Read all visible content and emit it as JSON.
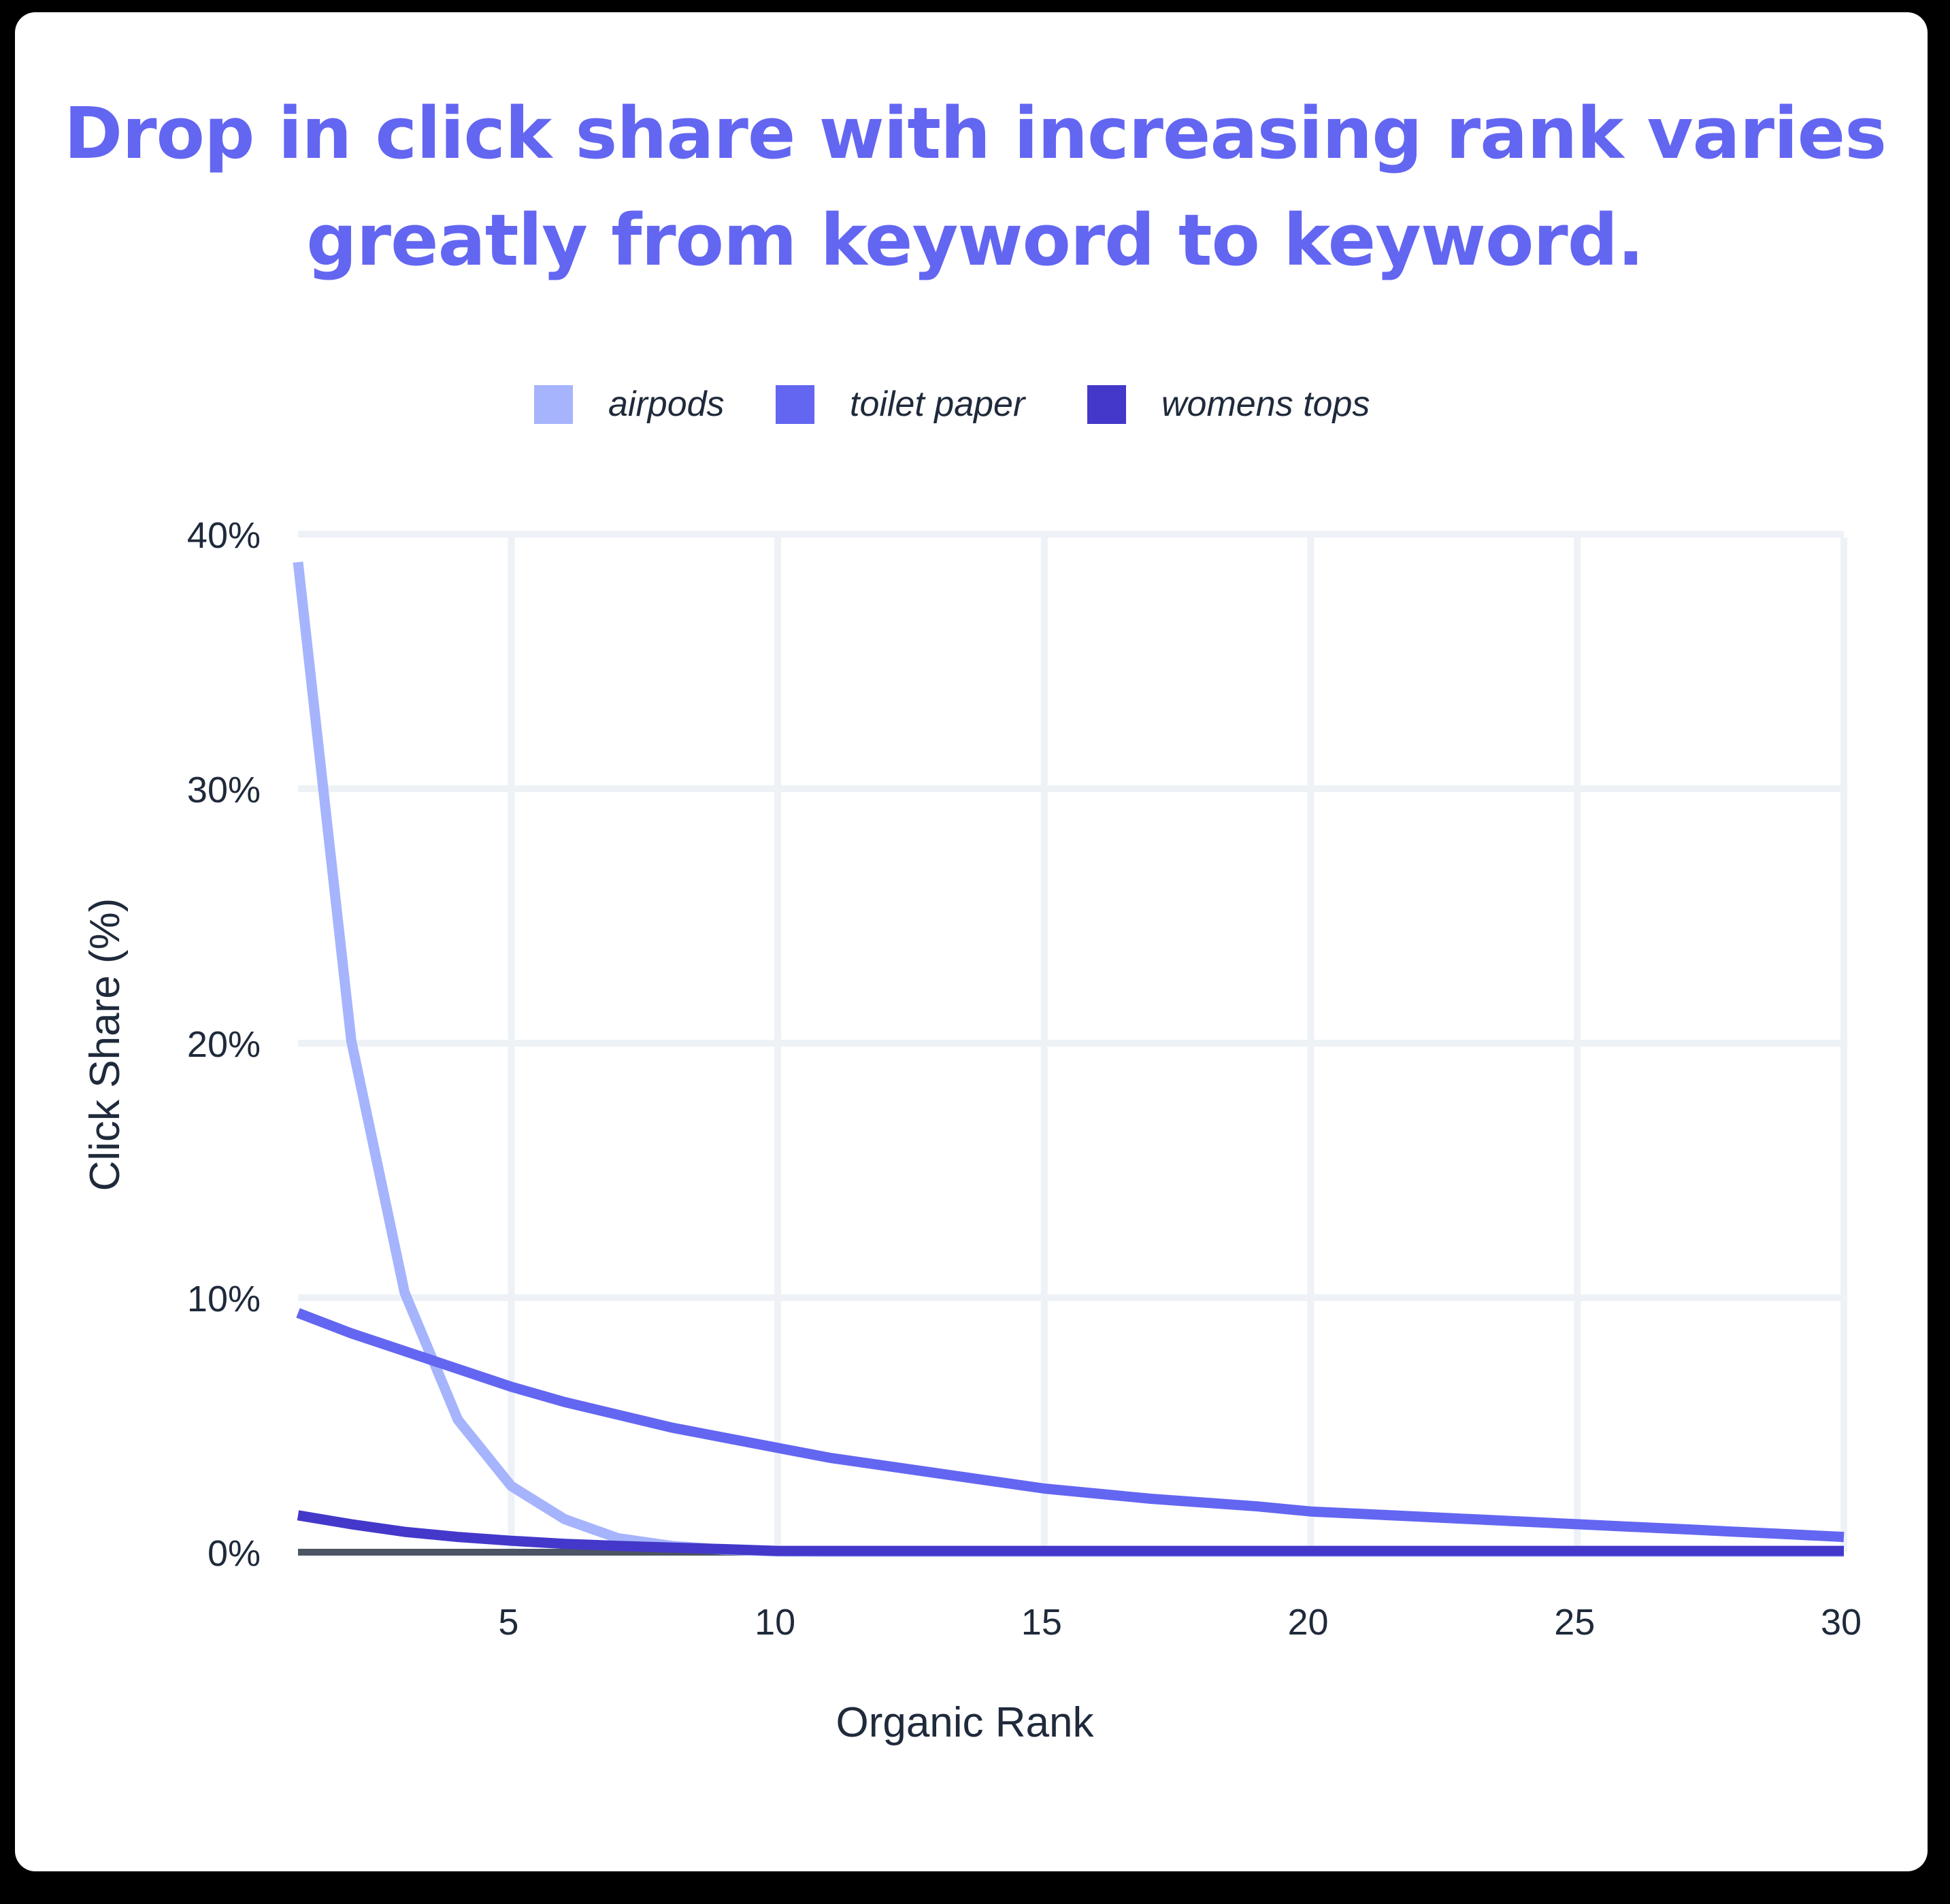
{
  "title": {
    "line1": "Drop in click share with increasing rank varies",
    "line2": "greatly from keyword to keyword."
  },
  "legend": [
    {
      "label": "airpods",
      "color": "#A5B4FC"
    },
    {
      "label": "toilet paper",
      "color": "#6366F1"
    },
    {
      "label": "womens tops",
      "color": "#4338CA"
    }
  ],
  "colors": {
    "title": "#6366F1",
    "grid": "#EEF2F7",
    "baseline": "#4B5563",
    "text": "#1F2A3B",
    "card": "#FFFFFF"
  },
  "chart_data": {
    "type": "line",
    "title": "Drop in click share with increasing rank varies greatly from keyword to keyword.",
    "xlabel": "Organic Rank",
    "ylabel": "Click Share (%)",
    "xlim": [
      1,
      30
    ],
    "ylim": [
      0,
      40
    ],
    "x_ticks": [
      5,
      10,
      15,
      20,
      25,
      30
    ],
    "y_ticks": [
      0,
      10,
      20,
      30,
      40
    ],
    "y_tick_labels": [
      "0%",
      "10%",
      "20%",
      "30%",
      "40%"
    ],
    "grid": true,
    "legend_position": "top",
    "x": [
      1,
      2,
      3,
      4,
      5,
      6,
      7,
      8,
      9,
      10,
      11,
      12,
      13,
      14,
      15,
      16,
      17,
      18,
      19,
      20,
      21,
      22,
      23,
      24,
      25,
      26,
      27,
      28,
      29,
      30
    ],
    "series": [
      {
        "name": "airpods",
        "color": "#A5B4FC",
        "values": [
          38.9,
          20.1,
          10.2,
          5.2,
          2.6,
          1.3,
          0.55,
          0.25,
          0.1,
          0.03,
          0.02,
          0.02,
          0.02,
          0.02,
          0.02,
          0.02,
          0.02,
          0.02,
          0.02,
          0.02,
          0.02,
          0.02,
          0.02,
          0.02,
          0.02,
          0.02,
          0.02,
          0.02,
          0.02,
          0.02
        ]
      },
      {
        "name": "toilet paper",
        "color": "#6366F1",
        "values": [
          9.4,
          8.6,
          7.9,
          7.2,
          6.5,
          5.9,
          5.4,
          4.9,
          4.5,
          4.1,
          3.7,
          3.4,
          3.1,
          2.8,
          2.5,
          2.3,
          2.1,
          1.95,
          1.8,
          1.6,
          1.5,
          1.4,
          1.3,
          1.2,
          1.1,
          1.0,
          0.9,
          0.8,
          0.7,
          0.6
        ]
      },
      {
        "name": "womens tops",
        "color": "#4338CA",
        "values": [
          1.45,
          1.1,
          0.8,
          0.6,
          0.45,
          0.33,
          0.25,
          0.18,
          0.12,
          0.05,
          0.05,
          0.05,
          0.05,
          0.05,
          0.05,
          0.05,
          0.05,
          0.05,
          0.05,
          0.05,
          0.05,
          0.05,
          0.05,
          0.05,
          0.05,
          0.05,
          0.05,
          0.05,
          0.05,
          0.05
        ]
      }
    ]
  }
}
